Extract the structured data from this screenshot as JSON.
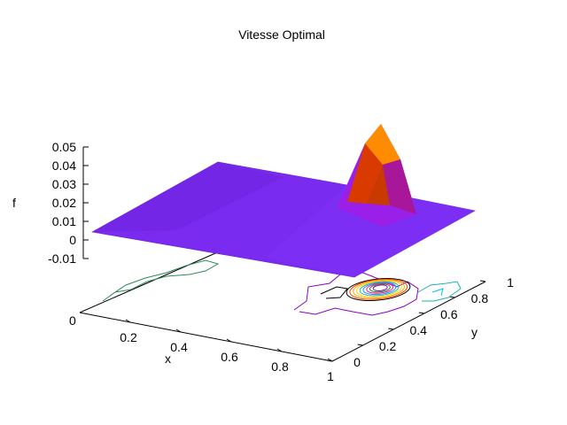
{
  "chart_data": {
    "type": "surface3d",
    "title": "Vitesse Optimal",
    "xlabel": "x",
    "ylabel": "y",
    "zlabel": "f",
    "x_ticks": [
      "0.2",
      "0.4",
      "0.6",
      "0.8",
      "1"
    ],
    "x_tick_values": [
      0.2,
      0.4,
      0.6,
      0.8,
      1.0
    ],
    "y_ticks": [
      "0",
      "0.2",
      "0.4",
      "0.6",
      "0.8",
      "1"
    ],
    "y_tick_values": [
      0,
      0.2,
      0.4,
      0.6,
      0.8,
      1.0
    ],
    "z_ticks": [
      "0.05",
      "0.04",
      "0.03",
      "0.02",
      "0.01",
      "0",
      "-0.01"
    ],
    "z_tick_values": [
      0.05,
      0.04,
      0.03,
      0.02,
      0.01,
      0,
      -0.01
    ],
    "base_label": "0",
    "xlim": [
      0,
      1
    ],
    "ylim": [
      0,
      1
    ],
    "zlim": [
      -0.01,
      0.05
    ],
    "peak": {
      "x": 0.95,
      "y": 0.62,
      "z": 0.05
    },
    "surface_color": "#7b2af0",
    "peak_colors": [
      "#ff8c00",
      "#d93a00",
      "#a8179a",
      "#9a1fe8"
    ],
    "contour_colors": [
      "#8b00c9",
      "#000000",
      "#ff4500",
      "#ffa500",
      "#ffd700",
      "#20b2aa",
      "#1e90ff",
      "#ff1493",
      "#228b22"
    ]
  }
}
